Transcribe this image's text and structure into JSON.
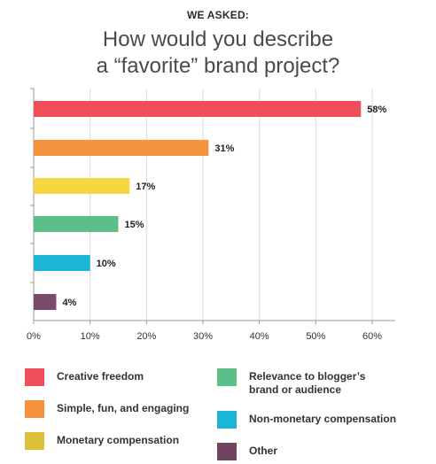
{
  "header": {
    "kicker": "WE ASKED:",
    "title_line1": "How would you describe",
    "title_line2": "a “favorite” brand project?"
  },
  "chart_data": {
    "type": "bar",
    "orientation": "horizontal",
    "categories": [
      "Creative freedom",
      "Simple, fun, and engaging",
      "Monetary compensation",
      "Relevance to blogger’s brand or audience",
      "Non-monetary compensation",
      "Other"
    ],
    "values": [
      58,
      31,
      17,
      15,
      10,
      4
    ],
    "value_labels": [
      "58%",
      "31%",
      "17%",
      "15%",
      "10%",
      "4%"
    ],
    "colors": [
      "#f04e58",
      "#f5923e",
      "#f6d743",
      "#5cbf8a",
      "#1cb5d6",
      "#7a4b6b"
    ],
    "xlim": [
      0,
      64
    ],
    "xticks": [
      0,
      10,
      20,
      30,
      40,
      50,
      60
    ],
    "xtick_labels": [
      "0%",
      "10%",
      "20%",
      "30%",
      "40%",
      "50%",
      "60%"
    ],
    "grid": true,
    "legend_position": "bottom",
    "title": "How would you describe a “favorite” brand project?",
    "xlabel": "",
    "ylabel": ""
  },
  "legend": {
    "items": [
      {
        "label": "Creative freedom",
        "color": "#f04e58"
      },
      {
        "label": "Simple, fun, and engaging",
        "color": "#f5923e"
      },
      {
        "label": "Monetary compensation",
        "color": "#dcc13a"
      },
      {
        "label": "Relevance to blogger’s\nbrand or audience",
        "color": "#5cbf8a"
      },
      {
        "label": "Non-monetary compensation",
        "color": "#1cb5d6"
      },
      {
        "label": "Other",
        "color": "#6e4460"
      }
    ]
  }
}
